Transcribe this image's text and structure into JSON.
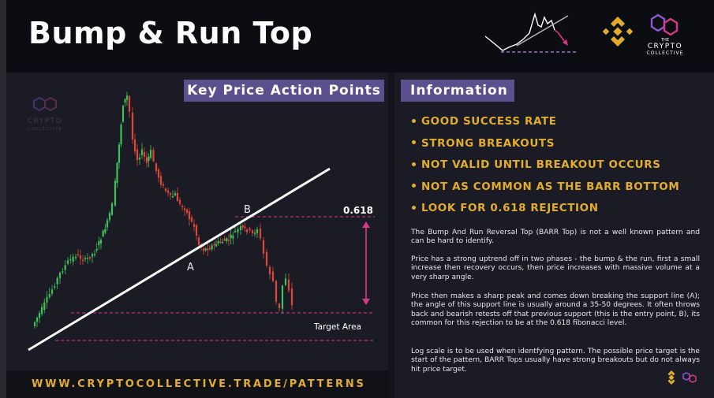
{
  "header": {
    "title": "Bump & Run Top"
  },
  "sections": {
    "left_label": "Key Price Action Points",
    "right_label": "Information"
  },
  "brand": {
    "name_line1": "THE",
    "name_line2": "CRYPTO",
    "name_line3": "COLLECTIVE",
    "watermark_line1": "CRYPTO",
    "watermark_line2": "COLLECTIVE"
  },
  "chart": {
    "label_a": "A",
    "label_b": "B",
    "fib_level": "0.618",
    "target_label": "Target Area"
  },
  "info": {
    "bullets": [
      "GOOD SUCCESS RATE",
      "STRONG BREAKOUTS",
      "NOT VALID UNTIL BREAKOUT OCCURS",
      "NOT AS COMMON AS THE BARR BOTTOM",
      "LOOK FOR 0.618 REJECTION"
    ],
    "paragraphs": [
      "The Bump And Run Reversal Top (BARR Top) is not a well known pattern and can be hard to identify.",
      "Price has a strong uptrend off in two phases - the bump & the run, first a small increase then recovery occurs, then price increases with massive volume at a very sharp angle.",
      "Price then makes a sharp peak and comes down breaking the support line (A); the angle of this support line is usually around a 35-50 degrees. It often throws back and bearish retests off that previous support (this is the entry point, B), its common for this rejection to be at the 0.618 fibonacci level.",
      "Log scale is to be used when identfying pattern. The possible price target is the start of the pattern, BARR Tops usually have strong breakouts but do not always hit price target."
    ]
  },
  "footer": {
    "url": "WWW.CRYPTOCOLLECTIVE.TRADE/PATTERNS"
  },
  "colors": {
    "accent_purple": "#5b4f8e",
    "gold": "#e2ad2a",
    "candle_up": "#3dbf5b",
    "candle_down": "#e0453a",
    "fib_magenta": "#d63a87"
  }
}
